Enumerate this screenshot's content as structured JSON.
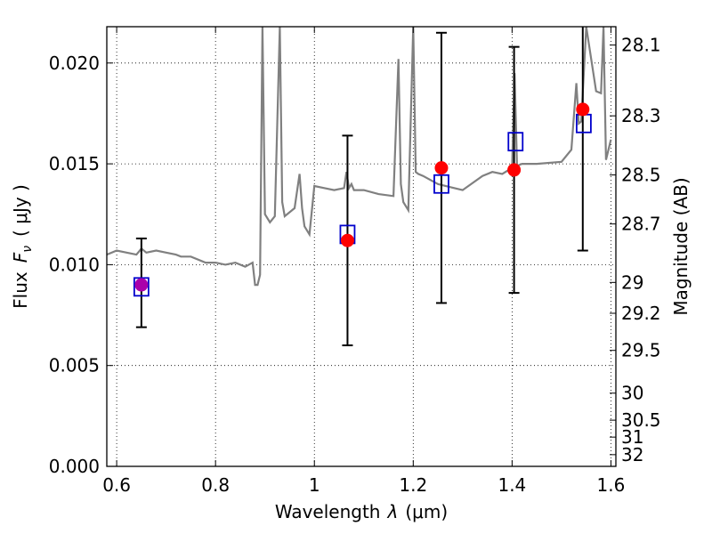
{
  "chart_data": {
    "type": "line",
    "xlabel_prefix": "Wavelength",
    "xlabel_symbol": "λ",
    "xlabel_unit": "(μm)",
    "ylabel_prefix": "Flux",
    "ylabel_symbol": "F",
    "ylabel_subscript": "ν",
    "ylabel_unit": "( μJy )",
    "y2label": "Magnitude (AB)",
    "xlim": [
      0.58,
      1.61
    ],
    "ylim": [
      0.0,
      0.0218
    ],
    "grid": true,
    "x_ticks": [
      0.6,
      0.8,
      1.0,
      1.2,
      1.4,
      1.6
    ],
    "x_tick_labels": [
      "0.6",
      "0.8",
      "1",
      "1.2",
      "1.4",
      "1.6"
    ],
    "y_ticks": [
      0.0,
      0.005,
      0.01,
      0.015,
      0.02
    ],
    "y_tick_labels": [
      "0.000",
      "0.005",
      "0.010",
      "0.015",
      "0.020"
    ],
    "y2_ticks": [
      {
        "label": "28.1",
        "flux": 0.02089
      },
      {
        "label": "28.3",
        "flux": 0.01738
      },
      {
        "label": "28.5",
        "flux": 0.01445
      },
      {
        "label": "28.7",
        "flux": 0.01202
      },
      {
        "label": "29",
        "flux": 0.00912
      },
      {
        "label": "29.2",
        "flux": 0.00759
      },
      {
        "label": "29.5",
        "flux": 0.00575
      },
      {
        "label": "30",
        "flux": 0.00363
      },
      {
        "label": "30.5",
        "flux": 0.00229
      },
      {
        "label": "31",
        "flux": 0.00145
      },
      {
        "label": "32",
        "flux": 0.00058
      }
    ],
    "colors": {
      "spectrum": "#808080",
      "observed": "#ff0000",
      "model": "#0000cc",
      "first_point": "#aa00aa",
      "errorbar": "#000000"
    },
    "series": [
      {
        "role": "spectrum",
        "x": [
          0.58,
          0.6,
          0.62,
          0.64,
          0.65,
          0.66,
          0.68,
          0.7,
          0.72,
          0.73,
          0.75,
          0.78,
          0.8,
          0.82,
          0.84,
          0.86,
          0.875,
          0.88,
          0.885,
          0.89,
          0.895,
          0.9,
          0.91,
          0.92,
          0.93,
          0.935,
          0.94,
          0.96,
          0.97,
          0.975,
          0.98,
          0.99,
          1.0,
          1.02,
          1.04,
          1.06,
          1.065,
          1.07,
          1.075,
          1.08,
          1.1,
          1.13,
          1.16,
          1.17,
          1.175,
          1.18,
          1.19,
          1.2,
          1.205,
          1.21,
          1.22,
          1.25,
          1.3,
          1.34,
          1.36,
          1.38,
          1.4,
          1.405,
          1.41,
          1.42,
          1.45,
          1.5,
          1.52,
          1.53,
          1.535,
          1.54,
          1.55,
          1.57,
          1.58,
          1.585,
          1.59,
          1.6
        ],
        "y": [
          0.0105,
          0.0107,
          0.0106,
          0.0105,
          0.0108,
          0.0106,
          0.0107,
          0.0106,
          0.0105,
          0.0104,
          0.0104,
          0.0101,
          0.0101,
          0.01,
          0.0101,
          0.0099,
          0.0101,
          0.009,
          0.009,
          0.0095,
          0.0218,
          0.0125,
          0.0121,
          0.0124,
          0.0218,
          0.0131,
          0.0124,
          0.0128,
          0.0145,
          0.0128,
          0.0119,
          0.0115,
          0.0139,
          0.0138,
          0.0137,
          0.0138,
          0.0146,
          0.0138,
          0.014,
          0.0137,
          0.0137,
          0.0135,
          0.0134,
          0.0202,
          0.014,
          0.0131,
          0.0127,
          0.0218,
          0.0146,
          0.0145,
          0.0144,
          0.014,
          0.0137,
          0.0144,
          0.0146,
          0.0145,
          0.0148,
          0.0195,
          0.0149,
          0.015,
          0.015,
          0.0151,
          0.0157,
          0.019,
          0.017,
          0.0171,
          0.0218,
          0.0186,
          0.0185,
          0.0218,
          0.0152,
          0.0162
        ]
      },
      {
        "role": "observed",
        "x": [
          0.65,
          1.067,
          1.257,
          1.404,
          1.543
        ],
        "y": [
          0.009,
          0.0112,
          0.0148,
          0.0147,
          0.0177
        ],
        "yerr_low": [
          0.0069,
          0.006,
          0.0081,
          0.0086,
          0.0107
        ],
        "yerr_high": [
          0.0113,
          0.0164,
          0.0215,
          0.0208,
          0.0218
        ]
      },
      {
        "role": "model",
        "x": [
          0.65,
          1.067,
          1.257,
          1.407,
          1.545
        ],
        "y": [
          0.0089,
          0.0115,
          0.014,
          0.0161,
          0.017
        ]
      }
    ]
  }
}
